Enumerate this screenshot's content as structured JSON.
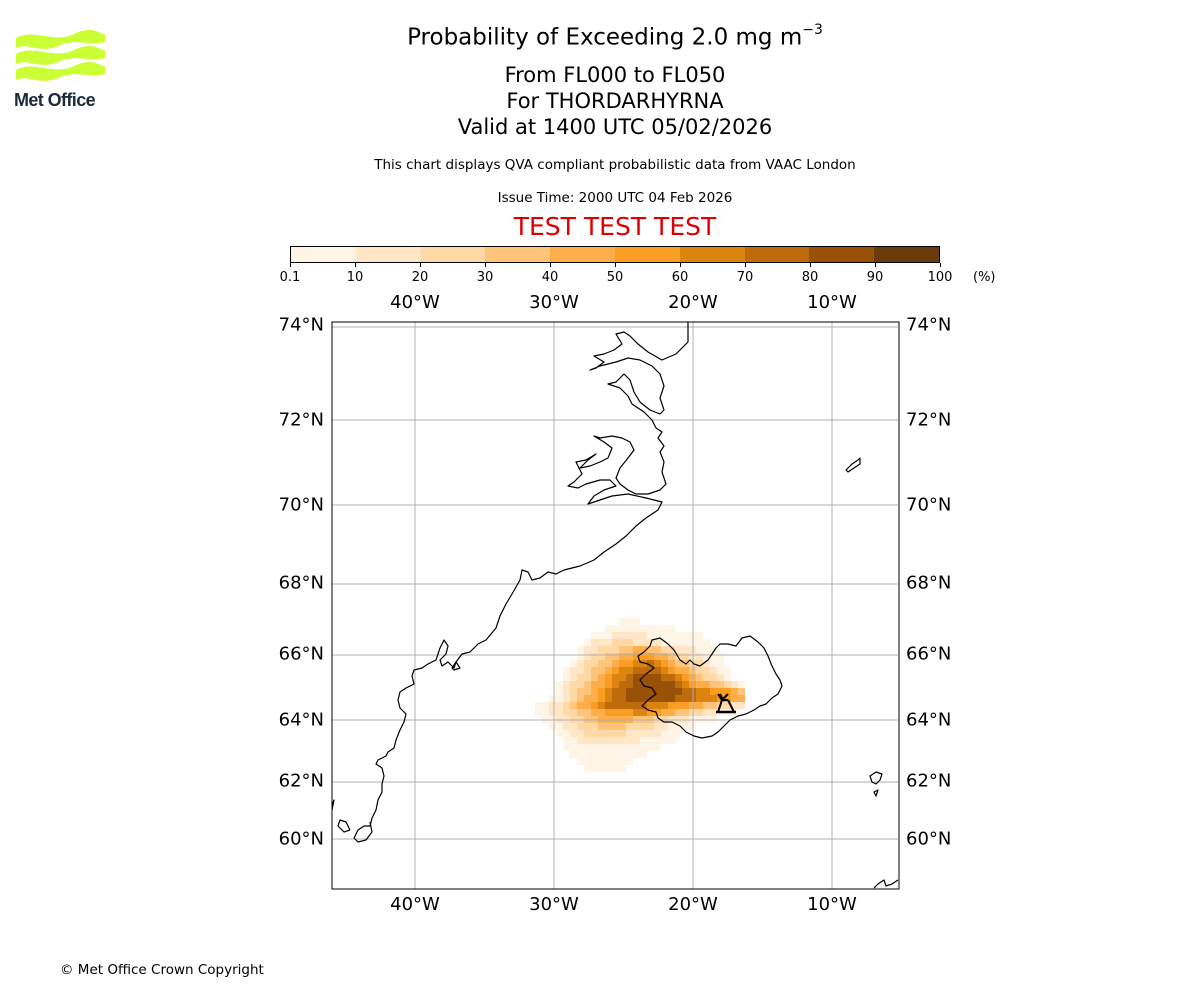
{
  "branding": {
    "logo_text": "Met Office",
    "logo_color": "#ccff33",
    "copyright": "© Met Office Crown Copyright"
  },
  "header": {
    "title_prefix": "Probability of Exceeding 2.0 mg m",
    "title_exponent": "−3",
    "flight_levels": "From FL000 to FL050",
    "volcano": "For THORDARHYRNA",
    "valid_time": "Valid at 1400 UTC 05/02/2026",
    "description": "This chart displays QVA compliant probabilistic data from VAAC London",
    "issue_time": "Issue Time: 2000 UTC 04 Feb 2026",
    "test_banner": "TEST TEST TEST",
    "test_color": "#dd0000"
  },
  "colorbar": {
    "ticks": [
      "0.1",
      "10",
      "20",
      "30",
      "40",
      "50",
      "60",
      "70",
      "80",
      "90",
      "100"
    ],
    "unit": "(%)",
    "colors": [
      "#fff5e6",
      "#fee6c6",
      "#fed9a6",
      "#fec57a",
      "#fdae4b",
      "#f99d23",
      "#db8410",
      "#bd6b0b",
      "#985107",
      "#6b3a0a"
    ]
  },
  "map": {
    "lon_labels_top": [
      "40°W",
      "30°W",
      "20°W",
      "10°W"
    ],
    "lon_labels_bottom": [
      "40°W",
      "30°W",
      "20°W",
      "10°W"
    ],
    "lat_labels_left": [
      "74°N",
      "72°N",
      "70°N",
      "68°N",
      "66°N",
      "64°N",
      "62°N",
      "60°N"
    ],
    "lat_labels_right": [
      "74°N",
      "72°N",
      "70°N",
      "68°N",
      "66°N",
      "64°N",
      "62°N",
      "60°N"
    ],
    "volcano_marker": "volcano-icon"
  }
}
